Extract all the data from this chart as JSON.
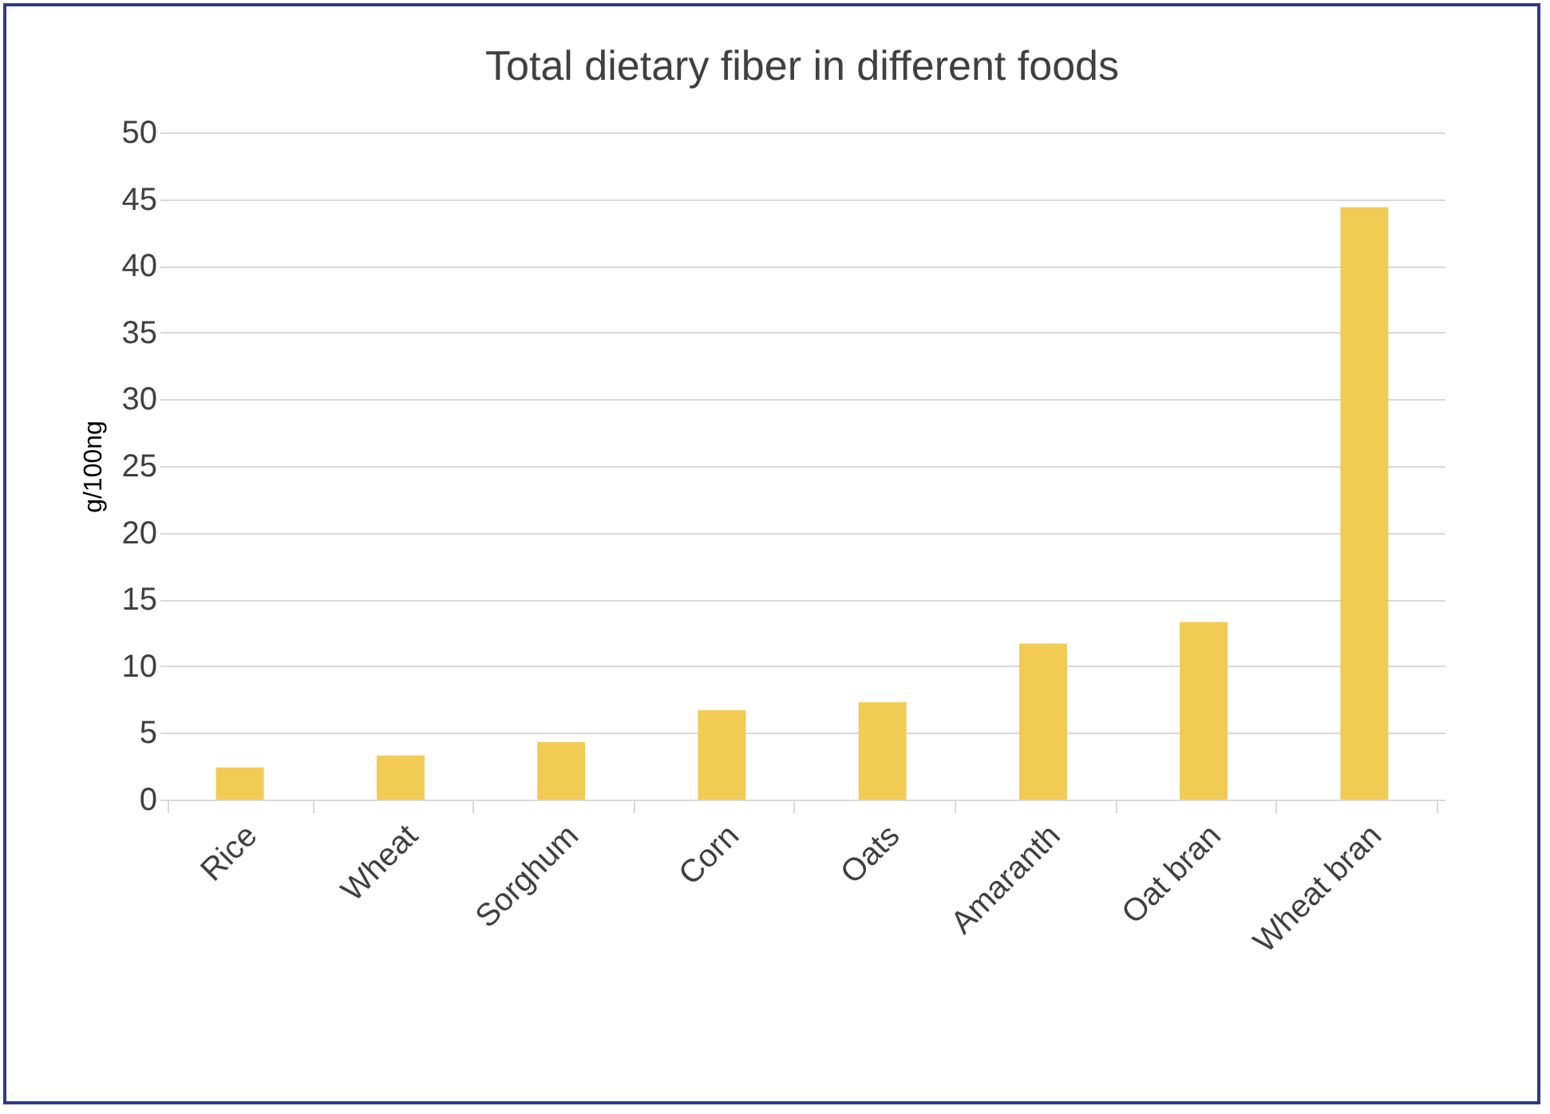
{
  "chart_data": {
    "type": "bar",
    "title": "Total dietary fiber in different foods",
    "ylabel": "g/100ng",
    "categories": [
      "Rice",
      "Wheat",
      "Sorghum",
      "Corn",
      "Oats",
      "Amaranth",
      "Oat bran",
      "Wheat bran"
    ],
    "values": [
      2.4,
      3.3,
      4.3,
      6.7,
      7.3,
      11.7,
      13.3,
      44.4
    ],
    "color": "#f2cb55",
    "ylim": [
      0,
      50
    ],
    "yticks": [
      0,
      5,
      10,
      15,
      20,
      25,
      30,
      35,
      40,
      45,
      50
    ],
    "grid": "y"
  }
}
